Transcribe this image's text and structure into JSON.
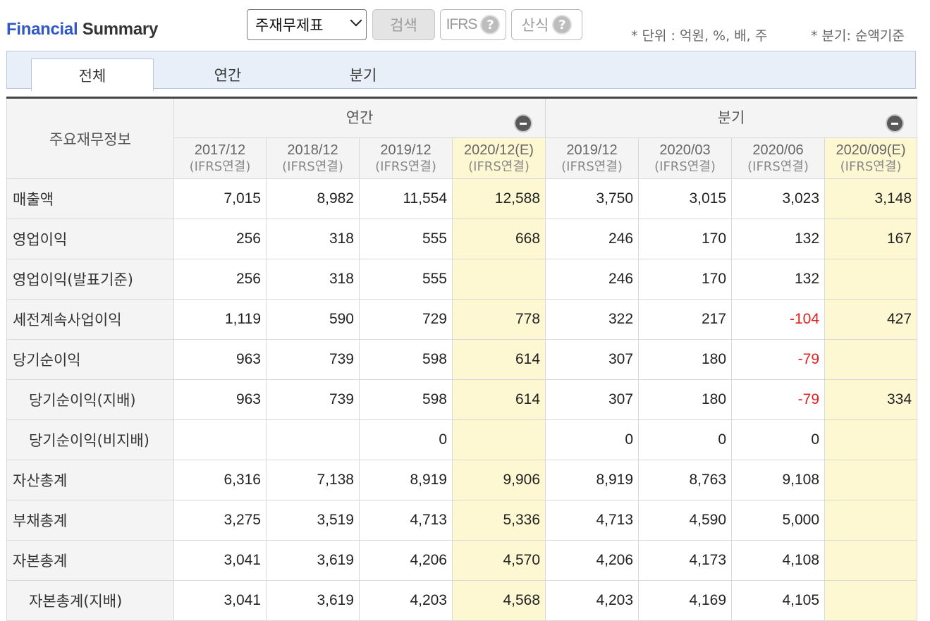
{
  "header": {
    "title_part1": "Financial",
    "title_part2": "Summary",
    "select_value": "주재무제표",
    "search_label": "검색",
    "ifrs_label": "IFRS",
    "formula_label": "산식",
    "help_glyph": "?",
    "unit_note": "* 단위 : 억원, %, 배, 주",
    "quarter_note": "* 분기: 순액기준"
  },
  "tabs": [
    {
      "label": "전체",
      "active": true
    },
    {
      "label": "연간",
      "active": false
    },
    {
      "label": "분기",
      "active": false
    }
  ],
  "table": {
    "corner_label": "주요재무정보",
    "groups": [
      "연간",
      "분기"
    ],
    "columns": [
      {
        "date": "2017/12",
        "sub": "(IFRS연결)",
        "estimate": false
      },
      {
        "date": "2018/12",
        "sub": "(IFRS연결)",
        "estimate": false
      },
      {
        "date": "2019/12",
        "sub": "(IFRS연결)",
        "estimate": false
      },
      {
        "date": "2020/12(E)",
        "sub": "(IFRS연결)",
        "estimate": true
      },
      {
        "date": "2019/12",
        "sub": "(IFRS연결)",
        "estimate": false
      },
      {
        "date": "2020/03",
        "sub": "(IFRS연결)",
        "estimate": false
      },
      {
        "date": "2020/06",
        "sub": "(IFRS연결)",
        "estimate": false
      },
      {
        "date": "2020/09(E)",
        "sub": "(IFRS연결)",
        "estimate": true
      }
    ],
    "rows": [
      {
        "label": "매출액",
        "sub": false,
        "values": [
          "7,015",
          "8,982",
          "11,554",
          "12,588",
          "3,750",
          "3,015",
          "3,023",
          "3,148"
        ]
      },
      {
        "label": "영업이익",
        "sub": false,
        "values": [
          "256",
          "318",
          "555",
          "668",
          "246",
          "170",
          "132",
          "167"
        ]
      },
      {
        "label": "영업이익(발표기준)",
        "sub": false,
        "values": [
          "256",
          "318",
          "555",
          "",
          "246",
          "170",
          "132",
          ""
        ]
      },
      {
        "label": "세전계속사업이익",
        "sub": false,
        "values": [
          "1,119",
          "590",
          "729",
          "778",
          "322",
          "217",
          "-104",
          "427"
        ]
      },
      {
        "label": "당기순이익",
        "sub": false,
        "values": [
          "963",
          "739",
          "598",
          "614",
          "307",
          "180",
          "-79",
          ""
        ]
      },
      {
        "label": "당기순이익(지배)",
        "sub": true,
        "values": [
          "963",
          "739",
          "598",
          "614",
          "307",
          "180",
          "-79",
          "334"
        ]
      },
      {
        "label": "당기순이익(비지배)",
        "sub": true,
        "values": [
          "",
          "",
          "0",
          "",
          "0",
          "0",
          "0",
          ""
        ]
      },
      {
        "label": "자산총계",
        "sub": false,
        "values": [
          "6,316",
          "7,138",
          "8,919",
          "9,906",
          "8,919",
          "8,763",
          "9,108",
          ""
        ]
      },
      {
        "label": "부채총계",
        "sub": false,
        "values": [
          "3,275",
          "3,519",
          "4,713",
          "5,336",
          "4,713",
          "4,590",
          "5,000",
          ""
        ]
      },
      {
        "label": "자본총계",
        "sub": false,
        "values": [
          "3,041",
          "3,619",
          "4,206",
          "4,570",
          "4,206",
          "4,173",
          "4,108",
          ""
        ]
      },
      {
        "label": "자본총계(지배)",
        "sub": true,
        "values": [
          "3,041",
          "3,619",
          "4,203",
          "4,568",
          "4,203",
          "4,169",
          "4,105",
          ""
        ]
      }
    ]
  }
}
